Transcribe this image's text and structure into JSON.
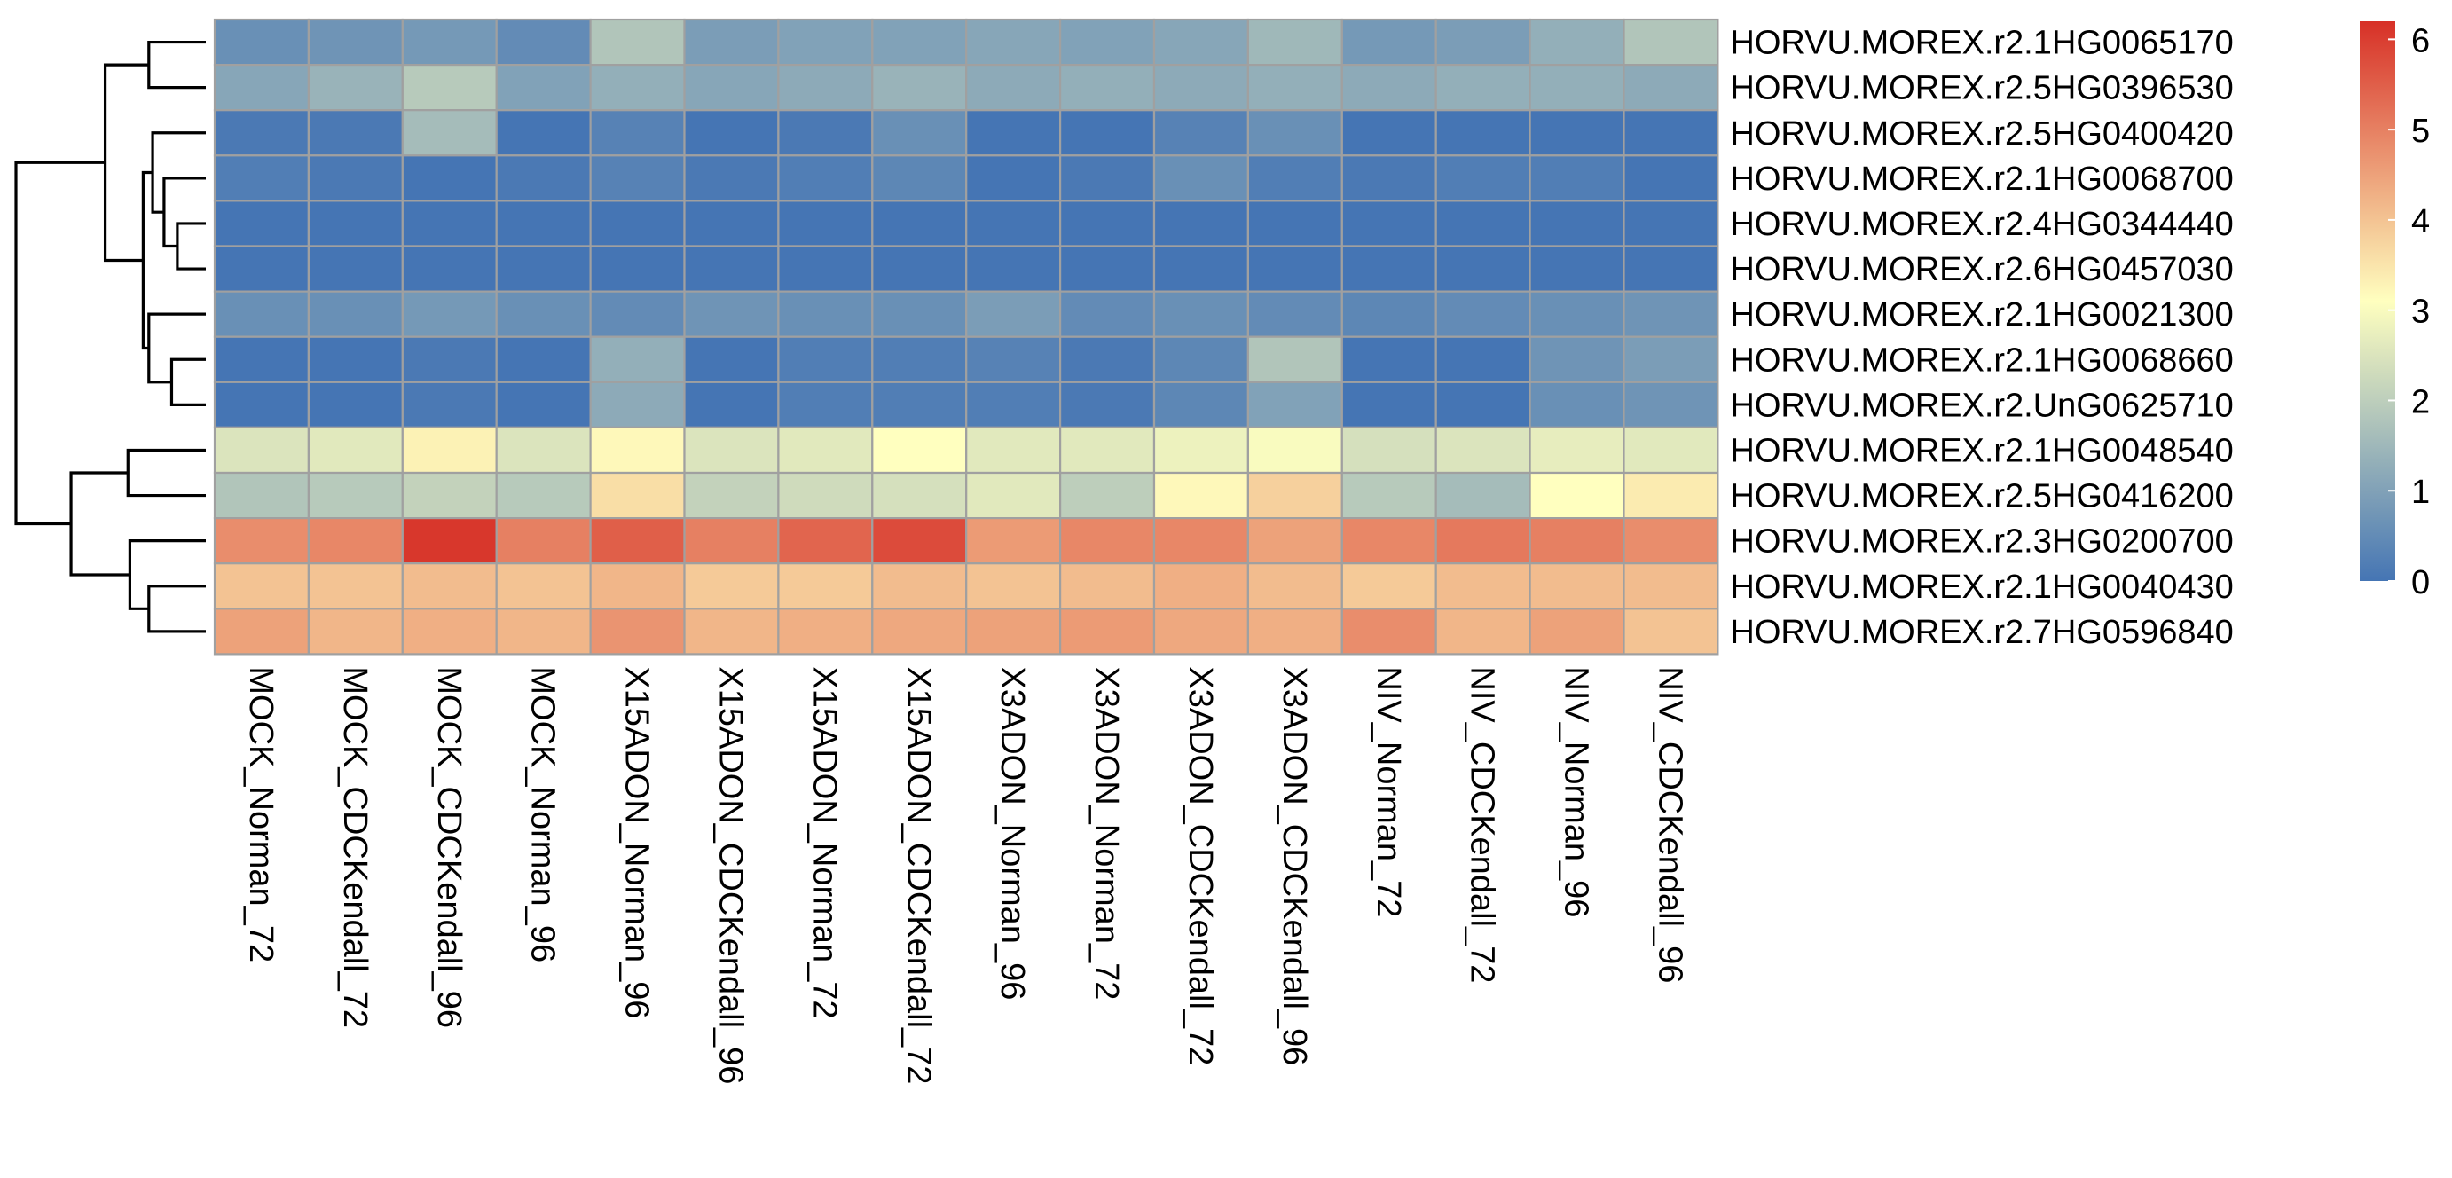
{
  "chart_data": {
    "type": "heatmap",
    "title": "",
    "xlabel": "",
    "ylabel": "",
    "rows": [
      "HORVU.MOREX.r2.1HG0065170",
      "HORVU.MOREX.r2.5HG0396530",
      "HORVU.MOREX.r2.5HG0400420",
      "HORVU.MOREX.r2.1HG0068700",
      "HORVU.MOREX.r2.4HG0344440",
      "HORVU.MOREX.r2.6HG0457030",
      "HORVU.MOREX.r2.1HG0021300",
      "HORVU.MOREX.r2.1HG0068660",
      "HORVU.MOREX.r2.UnG0625710",
      "HORVU.MOREX.r2.1HG0048540",
      "HORVU.MOREX.r2.5HG0416200",
      "HORVU.MOREX.r2.3HG0200700",
      "HORVU.MOREX.r2.1HG0040430",
      "HORVU.MOREX.r2.7HG0596840"
    ],
    "columns": [
      "MOCK_Norman_72",
      "MOCK_CDCKendall_72",
      "MOCK_CDCKendall_96",
      "MOCK_Norman_96",
      "X15ADON_Norman_96",
      "X15ADON_CDCKendall_96",
      "X15ADON_Norman_72",
      "X15ADON_CDCKendall_72",
      "X3ADON_Norman_96",
      "X3ADON_Norman_72",
      "X3ADON_CDCKendall_72",
      "X3ADON_CDCKendall_96",
      "NIV_Norman_72",
      "NIV_CDCKendall_72",
      "NIV_Norman_96",
      "NIV_CDCKendall_96"
    ],
    "values": [
      [
        0.6,
        0.7,
        0.8,
        0.5,
        1.8,
        0.9,
        1.0,
        1.0,
        1.1,
        1.0,
        1.1,
        1.5,
        0.8,
        0.9,
        1.3,
        1.8
      ],
      [
        1.1,
        1.4,
        1.9,
        1.0,
        1.3,
        1.1,
        1.2,
        1.4,
        1.2,
        1.3,
        1.2,
        1.3,
        1.2,
        1.3,
        1.3,
        1.2
      ],
      [
        0.1,
        0.1,
        1.6,
        0.0,
        0.3,
        0.0,
        0.1,
        0.6,
        0.0,
        0.0,
        0.3,
        0.6,
        0.0,
        0.0,
        0.0,
        0.0
      ],
      [
        0.2,
        0.1,
        0.0,
        0.1,
        0.3,
        0.1,
        0.2,
        0.4,
        0.0,
        0.1,
        0.6,
        0.2,
        0.1,
        0.2,
        0.2,
        0.0
      ],
      [
        0.0,
        0.0,
        0.0,
        0.0,
        0.0,
        0.0,
        0.0,
        0.0,
        0.0,
        0.0,
        0.0,
        0.0,
        0.0,
        0.0,
        0.0,
        0.0
      ],
      [
        0.0,
        0.0,
        0.0,
        0.0,
        0.0,
        0.0,
        0.0,
        0.0,
        0.0,
        0.0,
        0.0,
        0.0,
        0.0,
        0.0,
        0.0,
        0.0
      ],
      [
        0.6,
        0.6,
        0.8,
        0.6,
        0.5,
        0.7,
        0.6,
        0.6,
        0.9,
        0.5,
        0.6,
        0.5,
        0.4,
        0.5,
        0.6,
        0.7
      ],
      [
        0.0,
        0.0,
        0.1,
        0.0,
        1.3,
        0.0,
        0.2,
        0.2,
        0.3,
        0.1,
        0.4,
        1.8,
        0.0,
        0.0,
        0.7,
        0.9
      ],
      [
        0.0,
        0.0,
        0.1,
        0.0,
        1.2,
        0.0,
        0.2,
        0.2,
        0.2,
        0.1,
        0.4,
        1.0,
        0.0,
        0.0,
        0.6,
        0.7
      ],
      [
        2.5,
        2.6,
        3.3,
        2.5,
        3.2,
        2.5,
        2.6,
        3.1,
        2.6,
        2.6,
        2.8,
        3.0,
        2.4,
        2.5,
        2.7,
        2.6
      ],
      [
        1.8,
        1.9,
        2.1,
        1.9,
        3.6,
        2.1,
        2.3,
        2.4,
        2.6,
        2.0,
        3.2,
        3.8,
        1.9,
        1.6,
        3.1,
        3.4
      ],
      [
        4.8,
        4.9,
        6.1,
        5.0,
        5.5,
        5.0,
        5.4,
        5.8,
        4.6,
        4.9,
        4.9,
        4.5,
        4.9,
        5.1,
        5.0,
        4.8
      ],
      [
        4.0,
        4.0,
        4.1,
        4.0,
        4.2,
        3.9,
        3.9,
        4.1,
        4.0,
        4.1,
        4.3,
        4.1,
        3.9,
        4.1,
        4.1,
        4.1
      ],
      [
        4.5,
        4.2,
        4.3,
        4.2,
        4.7,
        4.2,
        4.3,
        4.4,
        4.5,
        4.6,
        4.4,
        4.3,
        4.8,
        4.2,
        4.5,
        4.0
      ]
    ],
    "value_range": [
      0,
      6.2
    ],
    "legend": {
      "placement": "right",
      "ticks": [
        "0",
        "1",
        "2",
        "3",
        "4",
        "5",
        "6"
      ],
      "tick_values": [
        0,
        1,
        2,
        3,
        4,
        5,
        6
      ]
    },
    "colors": {
      "low": "#4575b4",
      "mid": "#ffffbf",
      "high": "#d73027",
      "cell_border": "#a0a0a0"
    },
    "row_dendrogram": {
      "order": [
        0,
        1,
        2,
        3,
        4,
        5,
        6,
        7,
        8,
        9,
        10,
        11,
        12,
        13
      ],
      "merges": [
        [
          -1,
          -2,
          0.3
        ],
        [
          -5,
          -6,
          0.15
        ],
        [
          -4,
          2,
          0.22
        ],
        [
          -3,
          3,
          0.28
        ],
        [
          -8,
          -9,
          0.18
        ],
        [
          -7,
          5,
          0.3
        ],
        [
          4,
          6,
          0.33
        ],
        [
          1,
          7,
          0.53
        ],
        [
          -13,
          -14,
          0.3
        ],
        [
          -12,
          9,
          0.4
        ],
        [
          -10,
          -11,
          0.41
        ],
        [
          11,
          10,
          0.71
        ],
        [
          8,
          12,
          1.0
        ]
      ]
    }
  }
}
